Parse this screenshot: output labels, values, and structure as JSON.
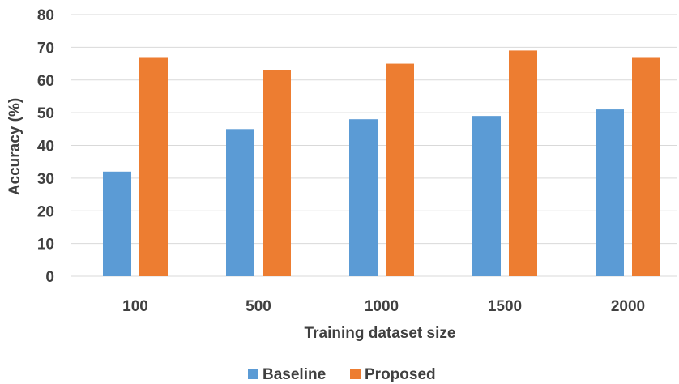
{
  "chart_data": {
    "type": "bar",
    "title": "",
    "xlabel": "Training dataset size",
    "ylabel": "Accuracy (%)",
    "categories": [
      "100",
      "500",
      "1000",
      "1500",
      "2000"
    ],
    "ylim": [
      0,
      80
    ],
    "yticks": [
      "0",
      "10",
      "20",
      "30",
      "40",
      "50",
      "60",
      "70",
      "80"
    ],
    "grid": true,
    "legend_position": "bottom",
    "series": [
      {
        "name": "Baseline",
        "color": "#5b9bd5",
        "values": [
          32,
          45,
          48,
          49,
          51
        ]
      },
      {
        "name": "Proposed",
        "color": "#ed7d31",
        "values": [
          67,
          63,
          65,
          69,
          67
        ]
      }
    ]
  }
}
